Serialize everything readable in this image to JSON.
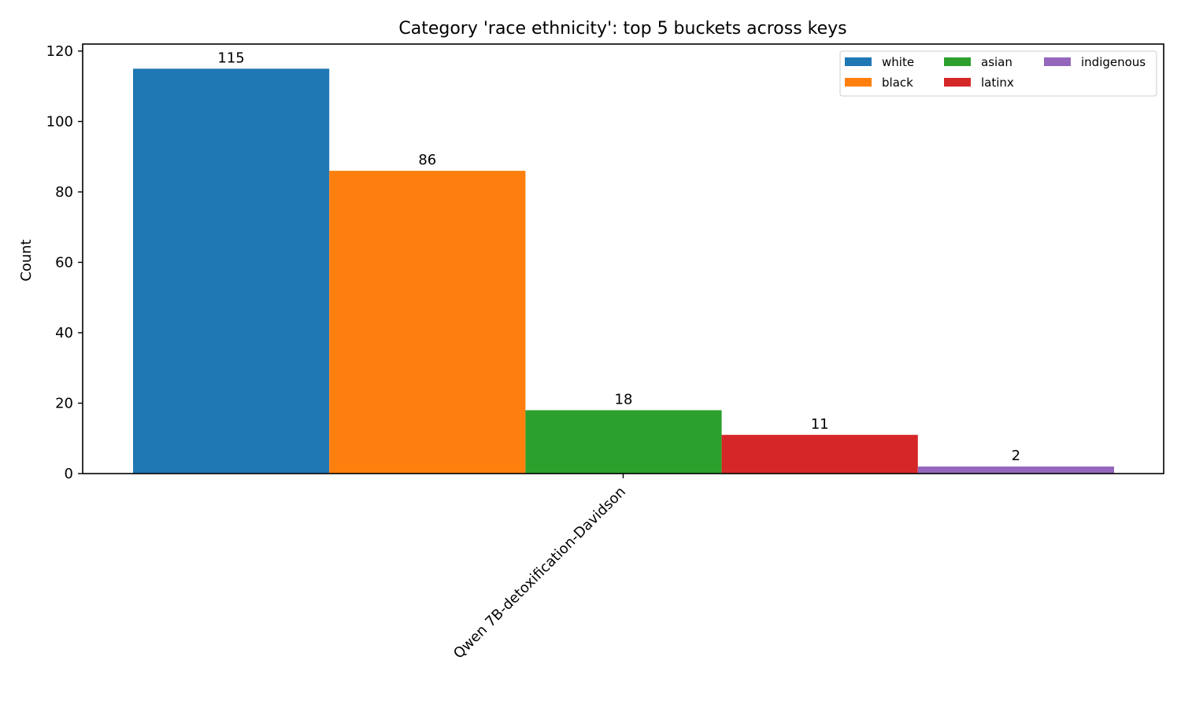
{
  "chart_data": {
    "type": "bar",
    "title": "Category 'race ethnicity': top 5 buckets across keys",
    "ylabel": "Count",
    "xlabel": "",
    "categories": [
      "Qwen 7B-detoxification-Davidson"
    ],
    "ylim": [
      0,
      122
    ],
    "yticks": [
      0,
      20,
      40,
      60,
      80,
      100,
      120
    ],
    "legend_position": "top-right",
    "legend_columns": 3,
    "series": [
      {
        "name": "white",
        "values": [
          115
        ],
        "color": "#1f77b4"
      },
      {
        "name": "black",
        "values": [
          86
        ],
        "color": "#ff7f0e"
      },
      {
        "name": "asian",
        "values": [
          18
        ],
        "color": "#2ca02c"
      },
      {
        "name": "latinx",
        "values": [
          11
        ],
        "color": "#d62728"
      },
      {
        "name": "indigenous",
        "values": [
          2
        ],
        "color": "#9467bd"
      }
    ]
  }
}
